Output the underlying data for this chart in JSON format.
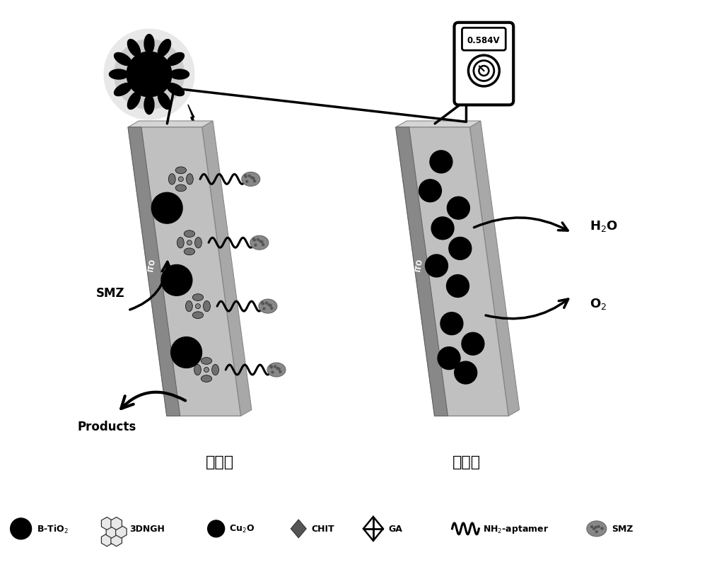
{
  "bg_color": "#ffffff",
  "black": "#000000",
  "electrode_face": "#c8c8c8",
  "electrode_top": "#d8d8d8",
  "electrode_side": "#a0a0a0",
  "ito_face": "#909090",
  "title_anode": "光阳极",
  "title_cathode": "光阴极",
  "voltage": "0.584V",
  "label_smz": "SMZ",
  "label_products": "Products",
  "label_h2o": "H$_2$O",
  "label_o2": "O$_2$",
  "figsize": [
    10.0,
    8.2
  ],
  "dpi": 100
}
